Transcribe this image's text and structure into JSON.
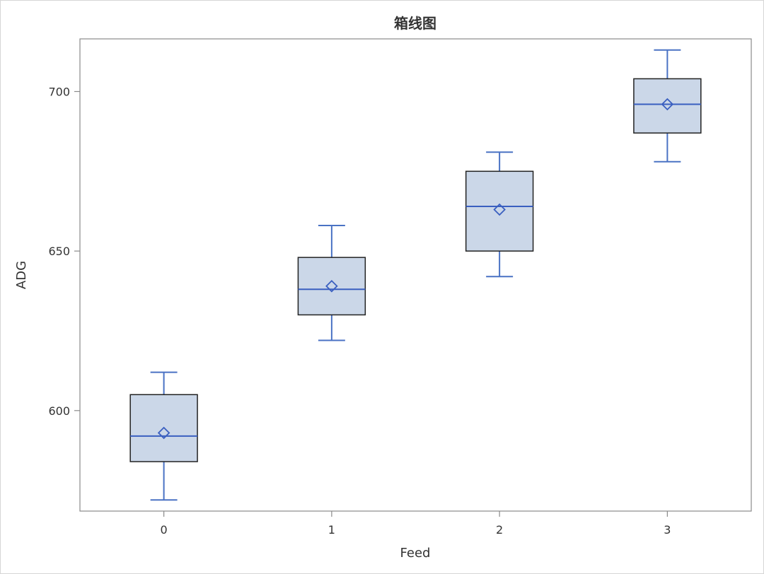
{
  "chart_data": {
    "type": "box",
    "title": "箱线图",
    "xlabel": "Feed",
    "ylabel": "ADG",
    "categories": [
      "0",
      "1",
      "2",
      "3"
    ],
    "y_ticks": [
      600,
      650,
      700
    ],
    "ylim": [
      568.5,
      716.5
    ],
    "grid": false,
    "legend": "none",
    "boxes": [
      {
        "category": "0",
        "whisker_low": 572,
        "q1": 584,
        "median": 592,
        "mean": 593,
        "q3": 605,
        "whisker_high": 612
      },
      {
        "category": "1",
        "whisker_low": 622,
        "q1": 630,
        "median": 638,
        "mean": 639,
        "q3": 648,
        "whisker_high": 658
      },
      {
        "category": "2",
        "whisker_low": 642,
        "q1": 650,
        "median": 664,
        "mean": 663,
        "q3": 675,
        "whisker_high": 681
      },
      {
        "category": "3",
        "whisker_low": 678,
        "q1": 687,
        "median": 696,
        "mean": 696,
        "q3": 704,
        "whisker_high": 713
      }
    ],
    "colors": {
      "box_fill": "#cbd7e8",
      "box_border": "#222222",
      "whisker": "#4a72c4",
      "median": "#3a5fc0",
      "mean_marker": "#3a5fc0",
      "axis": "#8a8a8a",
      "text": "#333333"
    }
  }
}
